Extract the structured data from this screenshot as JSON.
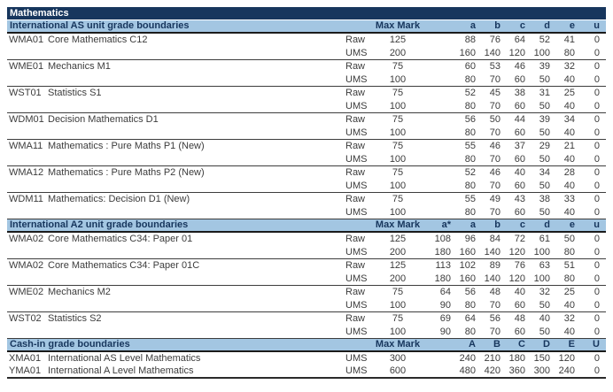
{
  "title": "Mathematics",
  "columns": {
    "max_mark": "Max Mark"
  },
  "colors": {
    "title_bar_bg": "#17365D",
    "title_bar_text": "#ffffff",
    "section_header_bg": "#A3C6E2",
    "section_header_text": "#17365D",
    "body_text": "#3c3c3c",
    "divider": "#3d3d3d"
  },
  "sections": [
    {
      "id": "international-as",
      "header": "International AS unit grade boundaries",
      "grade_cols": [
        "",
        "a",
        "b",
        "c",
        "d",
        "e",
        "u"
      ],
      "single_row_units": false,
      "units": [
        {
          "code": "WMA01",
          "name": "Core Mathematics C12",
          "rows": [
            {
              "type": "Raw",
              "max": "125",
              "values": [
                "",
                "88",
                "76",
                "64",
                "52",
                "41",
                "0"
              ]
            },
            {
              "type": "UMS",
              "max": "200",
              "values": [
                "",
                "160",
                "140",
                "120",
                "100",
                "80",
                "0"
              ]
            }
          ]
        },
        {
          "code": "WME01",
          "name": "Mechanics M1",
          "rows": [
            {
              "type": "Raw",
              "max": "75",
              "values": [
                "",
                "60",
                "53",
                "46",
                "39",
                "32",
                "0"
              ]
            },
            {
              "type": "UMS",
              "max": "100",
              "values": [
                "",
                "80",
                "70",
                "60",
                "50",
                "40",
                "0"
              ]
            }
          ]
        },
        {
          "code": "WST01",
          "name": "Statistics S1",
          "rows": [
            {
              "type": "Raw",
              "max": "75",
              "values": [
                "",
                "52",
                "45",
                "38",
                "31",
                "25",
                "0"
              ]
            },
            {
              "type": "UMS",
              "max": "100",
              "values": [
                "",
                "80",
                "70",
                "60",
                "50",
                "40",
                "0"
              ]
            }
          ]
        },
        {
          "code": "WDM01",
          "name": "Decision Mathematics D1",
          "rows": [
            {
              "type": "Raw",
              "max": "75",
              "values": [
                "",
                "56",
                "50",
                "44",
                "39",
                "34",
                "0"
              ]
            },
            {
              "type": "UMS",
              "max": "100",
              "values": [
                "",
                "80",
                "70",
                "60",
                "50",
                "40",
                "0"
              ]
            }
          ]
        },
        {
          "code": "WMA11",
          "name": "Mathematics : Pure Maths P1 (New)",
          "rows": [
            {
              "type": "Raw",
              "max": "75",
              "values": [
                "",
                "55",
                "46",
                "37",
                "29",
                "21",
                "0"
              ]
            },
            {
              "type": "UMS",
              "max": "100",
              "values": [
                "",
                "80",
                "70",
                "60",
                "50",
                "40",
                "0"
              ]
            }
          ]
        },
        {
          "code": "WMA12",
          "name": "Mathematics : Pure Maths P2 (New)",
          "rows": [
            {
              "type": "Raw",
              "max": "75",
              "values": [
                "",
                "52",
                "46",
                "40",
                "34",
                "28",
                "0"
              ]
            },
            {
              "type": "UMS",
              "max": "100",
              "values": [
                "",
                "80",
                "70",
                "60",
                "50",
                "40",
                "0"
              ]
            }
          ]
        },
        {
          "code": "WDM11",
          "name": "Mathematics: Decision D1 (New)",
          "rows": [
            {
              "type": "Raw",
              "max": "75",
              "values": [
                "",
                "55",
                "49",
                "43",
                "38",
                "33",
                "0"
              ]
            },
            {
              "type": "UMS",
              "max": "100",
              "values": [
                "",
                "80",
                "70",
                "60",
                "50",
                "40",
                "0"
              ]
            }
          ]
        }
      ]
    },
    {
      "id": "international-a2",
      "header": "International A2 unit grade boundaries",
      "grade_cols": [
        "a*",
        "a",
        "b",
        "c",
        "d",
        "e",
        "u"
      ],
      "single_row_units": false,
      "units": [
        {
          "code": "WMA02",
          "name": "Core Mathematics C34: Paper 01",
          "rows": [
            {
              "type": "Raw",
              "max": "125",
              "values": [
                "108",
                "96",
                "84",
                "72",
                "61",
                "50",
                "0"
              ]
            },
            {
              "type": "UMS",
              "max": "200",
              "values": [
                "180",
                "160",
                "140",
                "120",
                "100",
                "80",
                "0"
              ]
            }
          ]
        },
        {
          "code": "WMA02",
          "name": "Core Mathematics C34: Paper 01C",
          "rows": [
            {
              "type": "Raw",
              "max": "125",
              "values": [
                "113",
                "102",
                "89",
                "76",
                "63",
                "51",
                "0"
              ]
            },
            {
              "type": "UMS",
              "max": "200",
              "values": [
                "180",
                "160",
                "140",
                "120",
                "100",
                "80",
                "0"
              ]
            }
          ]
        },
        {
          "code": "WME02",
          "name": "Mechanics M2",
          "rows": [
            {
              "type": "Raw",
              "max": "75",
              "values": [
                "64",
                "56",
                "48",
                "40",
                "32",
                "25",
                "0"
              ]
            },
            {
              "type": "UMS",
              "max": "100",
              "values": [
                "90",
                "80",
                "70",
                "60",
                "50",
                "40",
                "0"
              ]
            }
          ]
        },
        {
          "code": "WST02",
          "name": "Statistics S2",
          "rows": [
            {
              "type": "Raw",
              "max": "75",
              "values": [
                "69",
                "64",
                "56",
                "48",
                "40",
                "32",
                "0"
              ]
            },
            {
              "type": "UMS",
              "max": "100",
              "values": [
                "90",
                "80",
                "70",
                "60",
                "50",
                "40",
                "0"
              ]
            }
          ]
        }
      ]
    },
    {
      "id": "cash-in",
      "header": "Cash-in grade boundaries",
      "grade_cols": [
        "",
        "A",
        "B",
        "C",
        "D",
        "E",
        "U"
      ],
      "single_row_units": true,
      "units": [
        {
          "code": "XMA01",
          "name": "International AS Level Mathematics",
          "rows": [
            {
              "type": "UMS",
              "max": "300",
              "values": [
                "",
                "240",
                "210",
                "180",
                "150",
                "120",
                "0"
              ]
            }
          ]
        },
        {
          "code": "YMA01",
          "name": "International A Level Mathematics",
          "rows": [
            {
              "type": "UMS",
              "max": "600",
              "values": [
                "",
                "480",
                "420",
                "360",
                "300",
                "240",
                "0"
              ]
            }
          ]
        }
      ]
    }
  ]
}
